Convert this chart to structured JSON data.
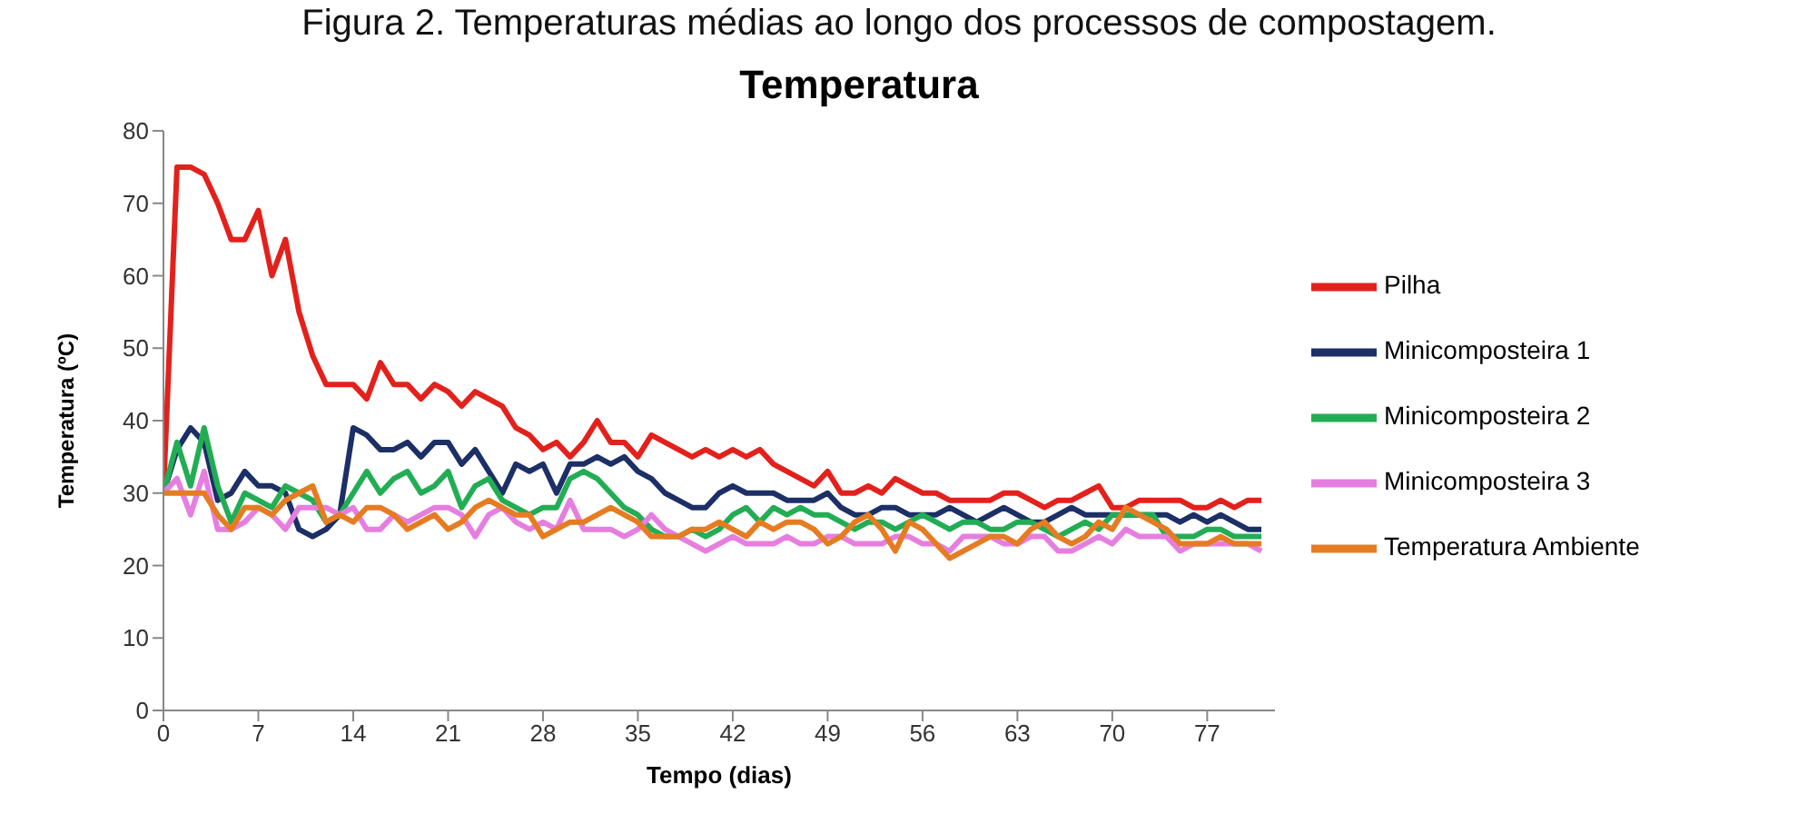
{
  "chart_data": {
    "type": "line",
    "title": "Temperatura",
    "annotations": [
      "Figura 2. Temperaturas médias ao longo dos processos de compostagem."
    ],
    "xlabel": "Tempo (dias)",
    "ylabel": "Temperatura (ºC)",
    "x": [
      0,
      1,
      2,
      3,
      4,
      5,
      6,
      7,
      8,
      9,
      10,
      11,
      12,
      13,
      14,
      15,
      16,
      17,
      18,
      19,
      20,
      21,
      22,
      23,
      24,
      25,
      26,
      27,
      28,
      29,
      30,
      31,
      32,
      33,
      34,
      35,
      36,
      37,
      38,
      39,
      40,
      41,
      42,
      43,
      44,
      45,
      46,
      47,
      48,
      49,
      50,
      51,
      52,
      53,
      54,
      55,
      56,
      57,
      58,
      59,
      60,
      61,
      62,
      63,
      64,
      65,
      66,
      67,
      68,
      69,
      70,
      71,
      72,
      73,
      74,
      75,
      76,
      77,
      78,
      79,
      80,
      81
    ],
    "xlim": [
      0,
      82
    ],
    "xticks": [
      0,
      7,
      14,
      21,
      28,
      35,
      42,
      49,
      56,
      63,
      70,
      77
    ],
    "ylim": [
      0,
      80
    ],
    "yticks": [
      0,
      10,
      20,
      30,
      40,
      50,
      60,
      70,
      80
    ],
    "grid": false,
    "legend": "right",
    "marker": "none",
    "line_style": "solid",
    "series": [
      {
        "name": "Pilha",
        "color": "#e3211c",
        "values": [
          30,
          75,
          75,
          74,
          70,
          65,
          65,
          69,
          60,
          65,
          55,
          49,
          45,
          45,
          45,
          43,
          48,
          45,
          45,
          43,
          45,
          44,
          42,
          44,
          43,
          42,
          39,
          38,
          36,
          37,
          35,
          37,
          40,
          37,
          37,
          35,
          38,
          37,
          36,
          35,
          36,
          35,
          36,
          35,
          36,
          34,
          33,
          32,
          31,
          33,
          30,
          30,
          31,
          30,
          32,
          31,
          30,
          30,
          29,
          29,
          29,
          29,
          30,
          30,
          29,
          28,
          29,
          29,
          30,
          31,
          28,
          28,
          29,
          29,
          29,
          29,
          28,
          28,
          29,
          28,
          29,
          29
        ]
      },
      {
        "name": "Minicomposteira 1",
        "color": "#1c2f66",
        "values": [
          30,
          36,
          39,
          37,
          29,
          30,
          33,
          31,
          31,
          30,
          25,
          24,
          25,
          27,
          39,
          38,
          36,
          36,
          37,
          35,
          37,
          37,
          34,
          36,
          33,
          30,
          34,
          33,
          34,
          30,
          34,
          34,
          35,
          34,
          35,
          33,
          32,
          30,
          29,
          28,
          28,
          30,
          31,
          30,
          30,
          30,
          29,
          29,
          29,
          30,
          28,
          27,
          27,
          28,
          28,
          27,
          27,
          27,
          28,
          27,
          26,
          27,
          28,
          27,
          26,
          26,
          27,
          28,
          27,
          27,
          27,
          27,
          27,
          27,
          27,
          26,
          27,
          26,
          27,
          26,
          25,
          25
        ]
      },
      {
        "name": "Minicomposteira 2",
        "color": "#22ad55",
        "values": [
          30,
          37,
          31,
          39,
          31,
          26,
          30,
          29,
          28,
          31,
          30,
          29,
          26,
          27,
          30,
          33,
          30,
          32,
          33,
          30,
          31,
          33,
          28,
          31,
          32,
          29,
          28,
          27,
          28,
          28,
          32,
          33,
          32,
          30,
          28,
          27,
          25,
          24,
          24,
          25,
          24,
          25,
          27,
          28,
          26,
          28,
          27,
          28,
          27,
          27,
          26,
          25,
          26,
          26,
          25,
          26,
          27,
          26,
          25,
          26,
          26,
          25,
          25,
          26,
          26,
          25,
          24,
          25,
          26,
          25,
          27,
          27,
          27,
          27,
          24,
          24,
          24,
          25,
          25,
          24,
          24,
          24
        ]
      },
      {
        "name": "Minicomposteira 3",
        "color": "#e67ee0",
        "values": [
          30,
          32,
          27,
          33,
          25,
          25,
          26,
          28,
          27,
          25,
          28,
          28,
          28,
          27,
          28,
          25,
          25,
          27,
          26,
          27,
          28,
          28,
          27,
          24,
          27,
          28,
          26,
          25,
          26,
          25,
          29,
          25,
          25,
          25,
          24,
          25,
          27,
          25,
          24,
          23,
          22,
          23,
          24,
          23,
          23,
          23,
          24,
          23,
          23,
          24,
          24,
          23,
          23,
          23,
          24,
          24,
          23,
          23,
          22,
          24,
          24,
          24,
          23,
          23,
          24,
          24,
          22,
          22,
          23,
          24,
          23,
          25,
          24,
          24,
          24,
          22,
          23,
          23,
          23,
          23,
          23,
          22
        ]
      },
      {
        "name": "Temperatura Ambiente",
        "color": "#e57c22",
        "values": [
          30,
          30,
          30,
          30,
          27,
          25,
          28,
          28,
          27,
          29,
          30,
          31,
          26,
          27,
          26,
          28,
          28,
          27,
          25,
          26,
          27,
          25,
          26,
          28,
          29,
          28,
          27,
          27,
          24,
          25,
          26,
          26,
          27,
          28,
          27,
          26,
          24,
          24,
          24,
          25,
          25,
          26,
          25,
          24,
          26,
          25,
          26,
          26,
          25,
          23,
          24,
          26,
          27,
          25,
          22,
          26,
          25,
          23,
          21,
          22,
          23,
          24,
          24,
          23,
          25,
          26,
          24,
          23,
          24,
          26,
          25,
          28,
          27,
          26,
          25,
          23,
          23,
          23,
          24,
          23,
          23,
          23
        ]
      }
    ]
  }
}
